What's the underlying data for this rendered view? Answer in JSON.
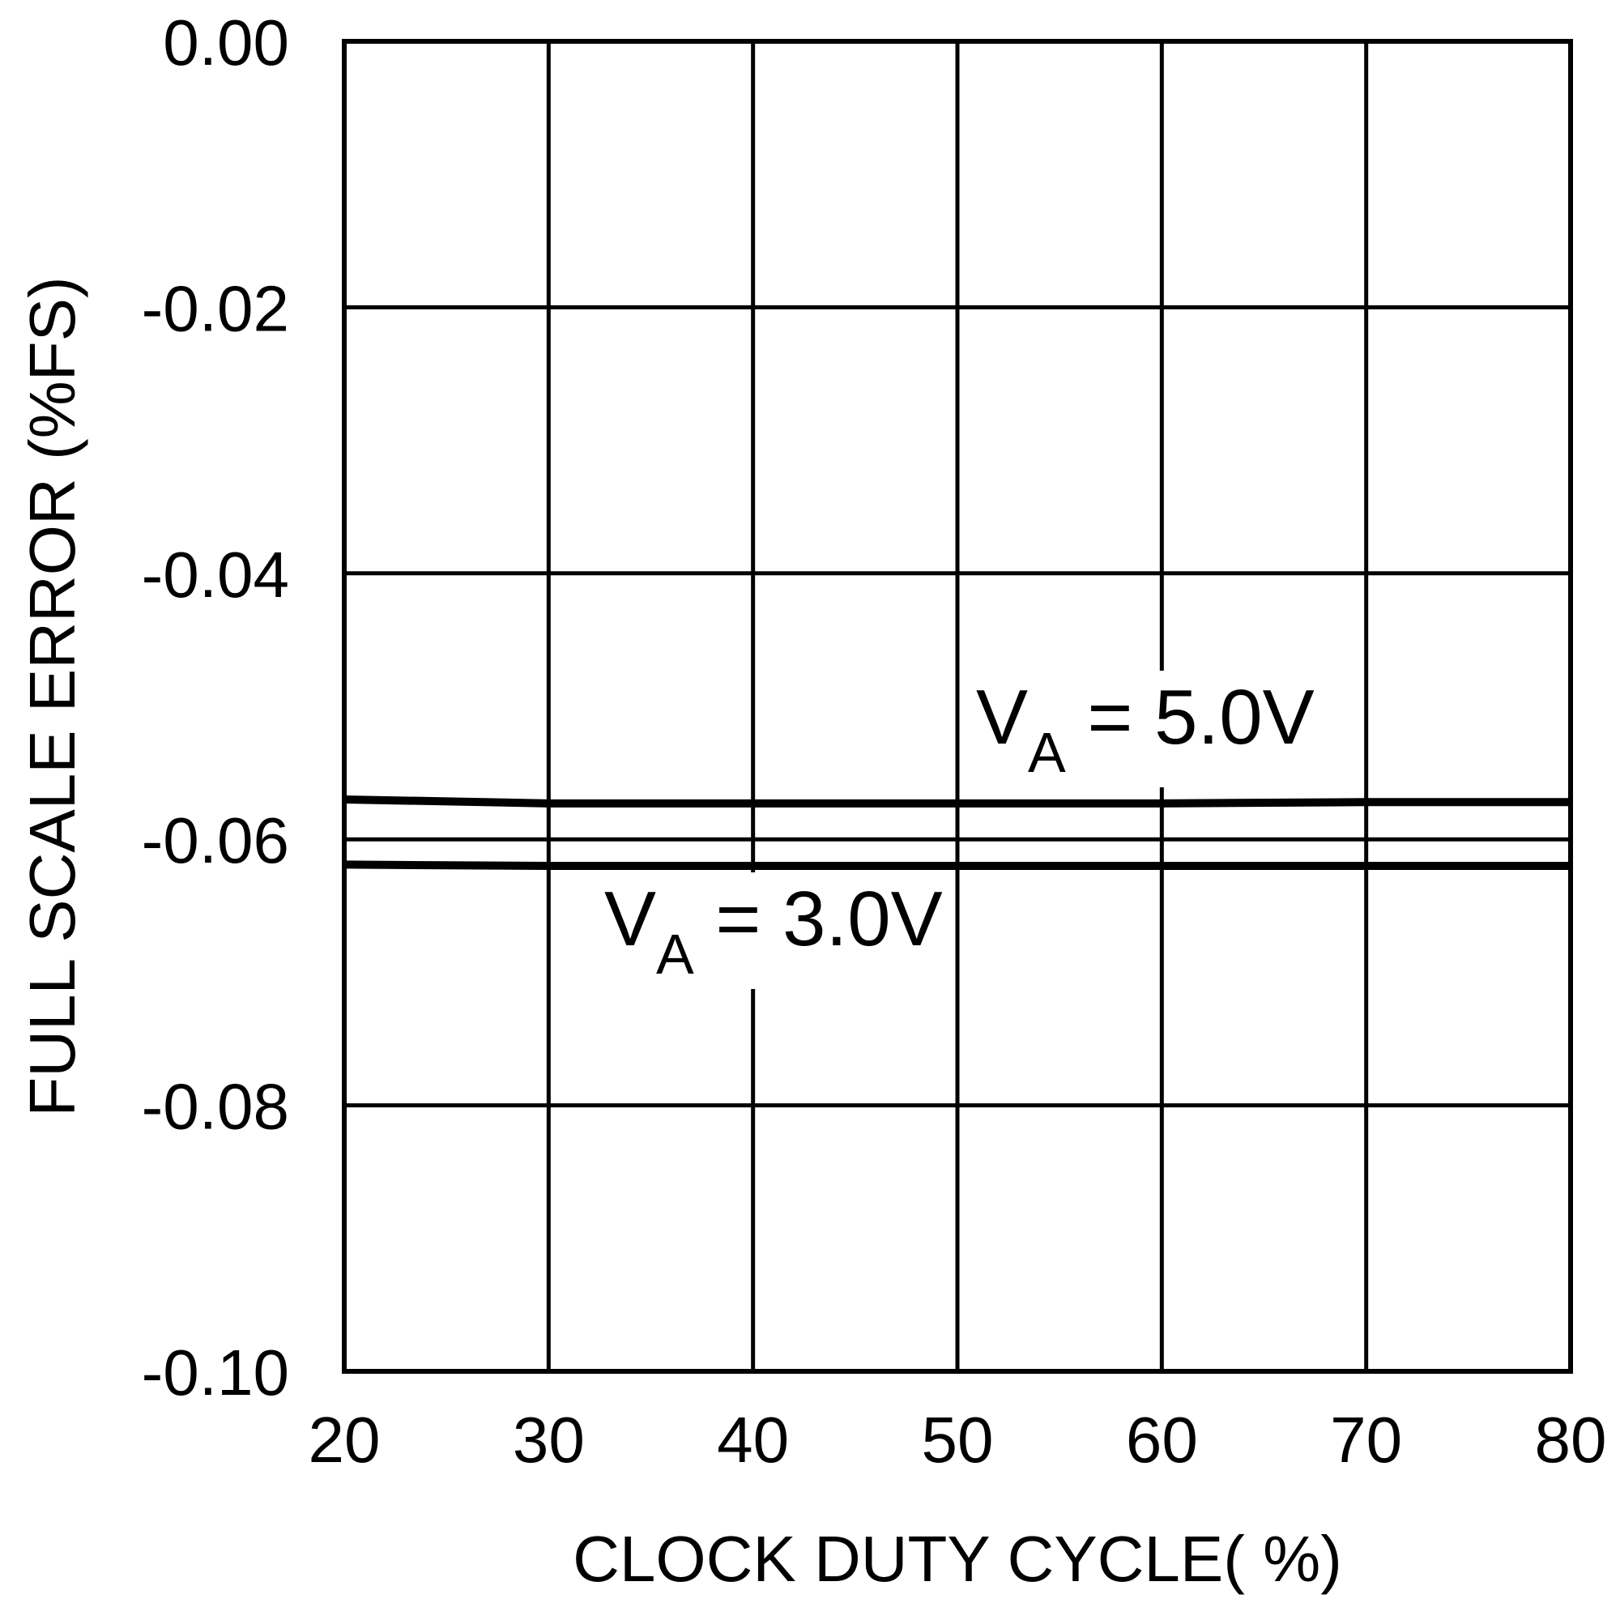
{
  "chart_data": {
    "type": "line",
    "x_label": "CLOCK DUTY CYCLE( %)",
    "y_label": "FULL SCALE ERROR (%FS)",
    "x": [
      20,
      30,
      40,
      50,
      60,
      70,
      80
    ],
    "series": [
      {
        "color": "#000000",
        "values": [
          -0.057,
          -0.0573,
          -0.0573,
          -0.0573,
          -0.0573,
          -0.0572,
          -0.0572
        ]
      },
      {
        "color": "#000000",
        "values": [
          -0.0619,
          -0.062,
          -0.062,
          -0.062,
          -0.062,
          -0.062,
          -0.062
        ]
      }
    ],
    "annotations": [
      {
        "text": "V",
        "subscript": "A",
        "suffix": " = 5.0V"
      },
      {
        "text": "V",
        "subscript": "A",
        "suffix": " = 3.0V"
      }
    ],
    "xlim": [
      20,
      80
    ],
    "xticks": [
      20,
      30,
      40,
      50,
      60,
      70,
      80
    ],
    "ylim": [
      -0.1,
      0
    ],
    "yticks": [
      {
        "value": 0,
        "label": "0.00"
      },
      -0.02,
      -0.04,
      -0.06,
      -0.08,
      {
        "value": -0.1,
        "label": "-0.10"
      }
    ],
    "grid": true
  }
}
